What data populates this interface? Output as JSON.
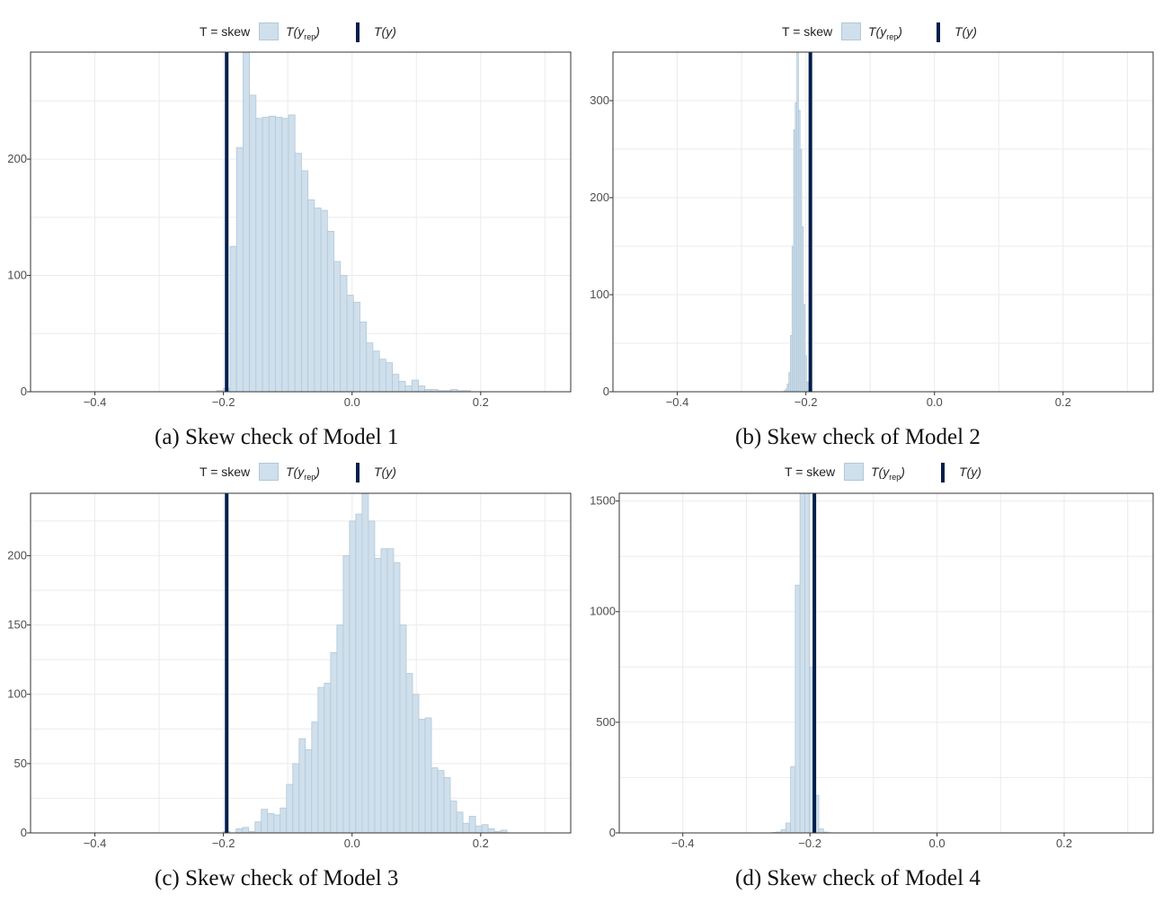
{
  "colors": {
    "bar_fill": "#cfdfeb",
    "bar_stroke": "#b1c8d9",
    "observed_line": "#011f4b",
    "grid": "#ebebeb",
    "axis_text": "#4d4d4d"
  },
  "legend": {
    "stat_label": "T = skew",
    "rep_label": "T(y",
    "rep_sub": "rep",
    "rep_close": ")",
    "obs_label": "T(y)"
  },
  "panels": [
    {
      "caption": "(a) Skew check of Model 1",
      "chart_data": {
        "type": "bar",
        "title": "",
        "xlabel": "",
        "ylabel": "",
        "xlim": [
          -0.5,
          0.34
        ],
        "ylim": [
          0,
          292
        ],
        "xticks": [
          -0.4,
          -0.2,
          0.0,
          0.2
        ],
        "xtick_labels": [
          "−0.4",
          "−0.2",
          "0.0",
          "0.2"
        ],
        "yticks": [
          0,
          100,
          200
        ],
        "ytick_labels": [
          "0",
          "100",
          "200"
        ],
        "observed": -0.195,
        "bin_width": 0.0101,
        "bin_start": -0.21,
        "series": [
          {
            "name": "T(y_rep)",
            "values": [
              1,
              3,
              125,
              210,
              292,
              255,
              235,
              236,
              237,
              236,
              235,
              238,
              205,
              190,
              165,
              158,
              156,
              138,
              112,
              100,
              83,
              77,
              60,
              42,
              35,
              28,
              25,
              15,
              9,
              5,
              10,
              5,
              2,
              2,
              1,
              1,
              2,
              1,
              1
            ]
          }
        ],
        "grid": true,
        "legend_position": "top"
      }
    },
    {
      "caption": "(b) Skew check of Model 2",
      "chart_data": {
        "type": "bar",
        "title": "",
        "xlabel": "",
        "ylabel": "",
        "xlim": [
          -0.5,
          0.34
        ],
        "ylim": [
          0,
          350
        ],
        "xticks": [
          -0.4,
          -0.2,
          0.0,
          0.2
        ],
        "xtick_labels": [
          "−0.4",
          "−0.2",
          "0.0",
          "0.2"
        ],
        "yticks": [
          0,
          100,
          200,
          300
        ],
        "ytick_labels": [
          "0",
          "100",
          "200",
          "300"
        ],
        "observed": -0.193,
        "bin_width": 0.0025,
        "bin_start": -0.234,
        "series": [
          {
            "name": "T(y_rep)",
            "values": [
              1,
              3,
              8,
              20,
              58,
              150,
              270,
              298,
              350,
              290,
              250,
              170,
              90,
              37,
              10,
              2
            ]
          }
        ],
        "grid": true,
        "legend_position": "top"
      }
    },
    {
      "caption": "(c) Skew check of Model 3",
      "chart_data": {
        "type": "bar",
        "title": "",
        "xlabel": "",
        "ylabel": "",
        "xlim": [
          -0.5,
          0.34
        ],
        "ylim": [
          0,
          245
        ],
        "xticks": [
          -0.4,
          -0.2,
          0.0,
          0.2
        ],
        "xtick_labels": [
          "−0.4",
          "−0.2",
          "0.0",
          "0.2"
        ],
        "yticks": [
          0,
          50,
          100,
          150,
          200
        ],
        "ytick_labels": [
          "0",
          "50",
          "100",
          "150",
          "200"
        ],
        "observed": -0.195,
        "bin_width": 0.0098,
        "bin_start": -0.2,
        "series": [
          {
            "name": "T(y_rep)",
            "values": [
              1,
              0,
              3,
              4,
              1,
              8,
              17,
              14,
              13,
              18,
              35,
              50,
              68,
              60,
              80,
              105,
              108,
              130,
              150,
              200,
              225,
              230,
              245,
              225,
              198,
              205,
              205,
              195,
              150,
              115,
              100,
              82,
              83,
              47,
              45,
              40,
              23,
              15,
              7,
              12,
              5,
              6,
              3,
              1,
              2
            ]
          }
        ],
        "grid": true,
        "legend_position": "top"
      }
    },
    {
      "caption": "(d) Skew check of Model 4",
      "chart_data": {
        "type": "bar",
        "title": "",
        "xlabel": "",
        "ylabel": "",
        "xlim": [
          -0.5,
          0.34
        ],
        "ylim": [
          0,
          1535
        ],
        "xticks": [
          -0.4,
          -0.2,
          0.0,
          0.2
        ],
        "xtick_labels": [
          "−0.4",
          "−0.2",
          "0.0",
          "0.2"
        ],
        "yticks": [
          0,
          500,
          1000,
          1500
        ],
        "ytick_labels": [
          "0",
          "500",
          "1000",
          "1500"
        ],
        "observed": -0.193,
        "bin_width": 0.0074,
        "bin_start": -0.26,
        "series": [
          {
            "name": "T(y_rep)",
            "values": [
              2,
              4,
              15,
              45,
              300,
              1120,
              1535,
              1535,
              750,
              170,
              18,
              4,
              1
            ]
          }
        ],
        "grid": true,
        "legend_position": "top"
      }
    }
  ]
}
